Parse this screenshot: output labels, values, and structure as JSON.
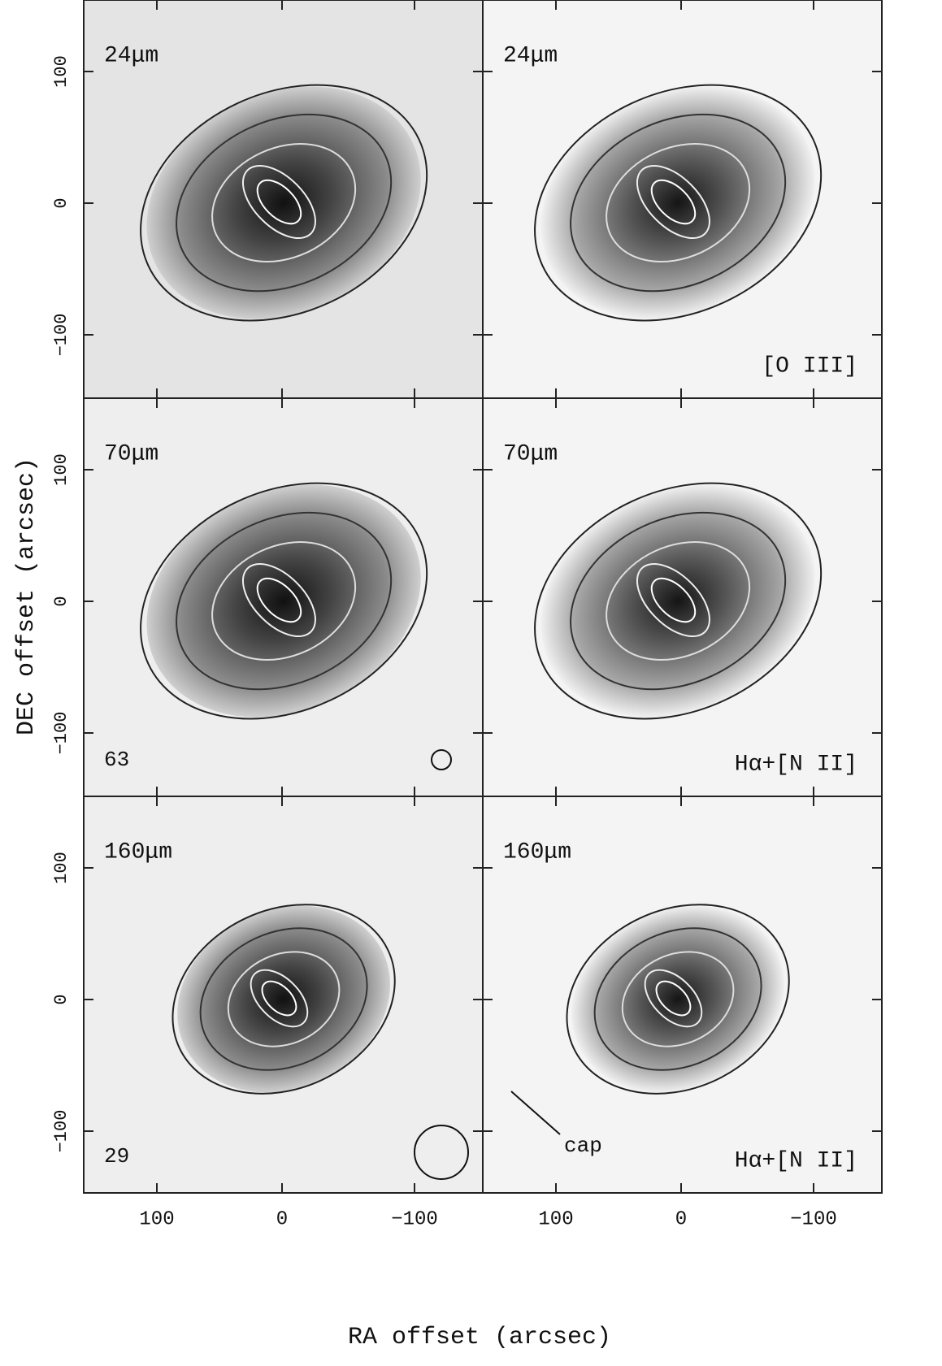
{
  "axes": {
    "x_label": "RA offset (arcsec)",
    "y_label": "DEC offset (arcsec)",
    "x_ticks": [
      "100",
      "0",
      "−100"
    ],
    "y_ticks": [
      "100",
      "0",
      "−100"
    ]
  },
  "panels": [
    {
      "band": "24μm"
    },
    {
      "band": "24μm",
      "line": "[O III]"
    },
    {
      "band": "70μm",
      "number": "63"
    },
    {
      "band": "70μm",
      "line": "Hα+[N II]"
    },
    {
      "band": "160μm",
      "number": "29"
    },
    {
      "band": "160μm",
      "line": "Hα+[N II]",
      "note": "cap"
    }
  ]
}
